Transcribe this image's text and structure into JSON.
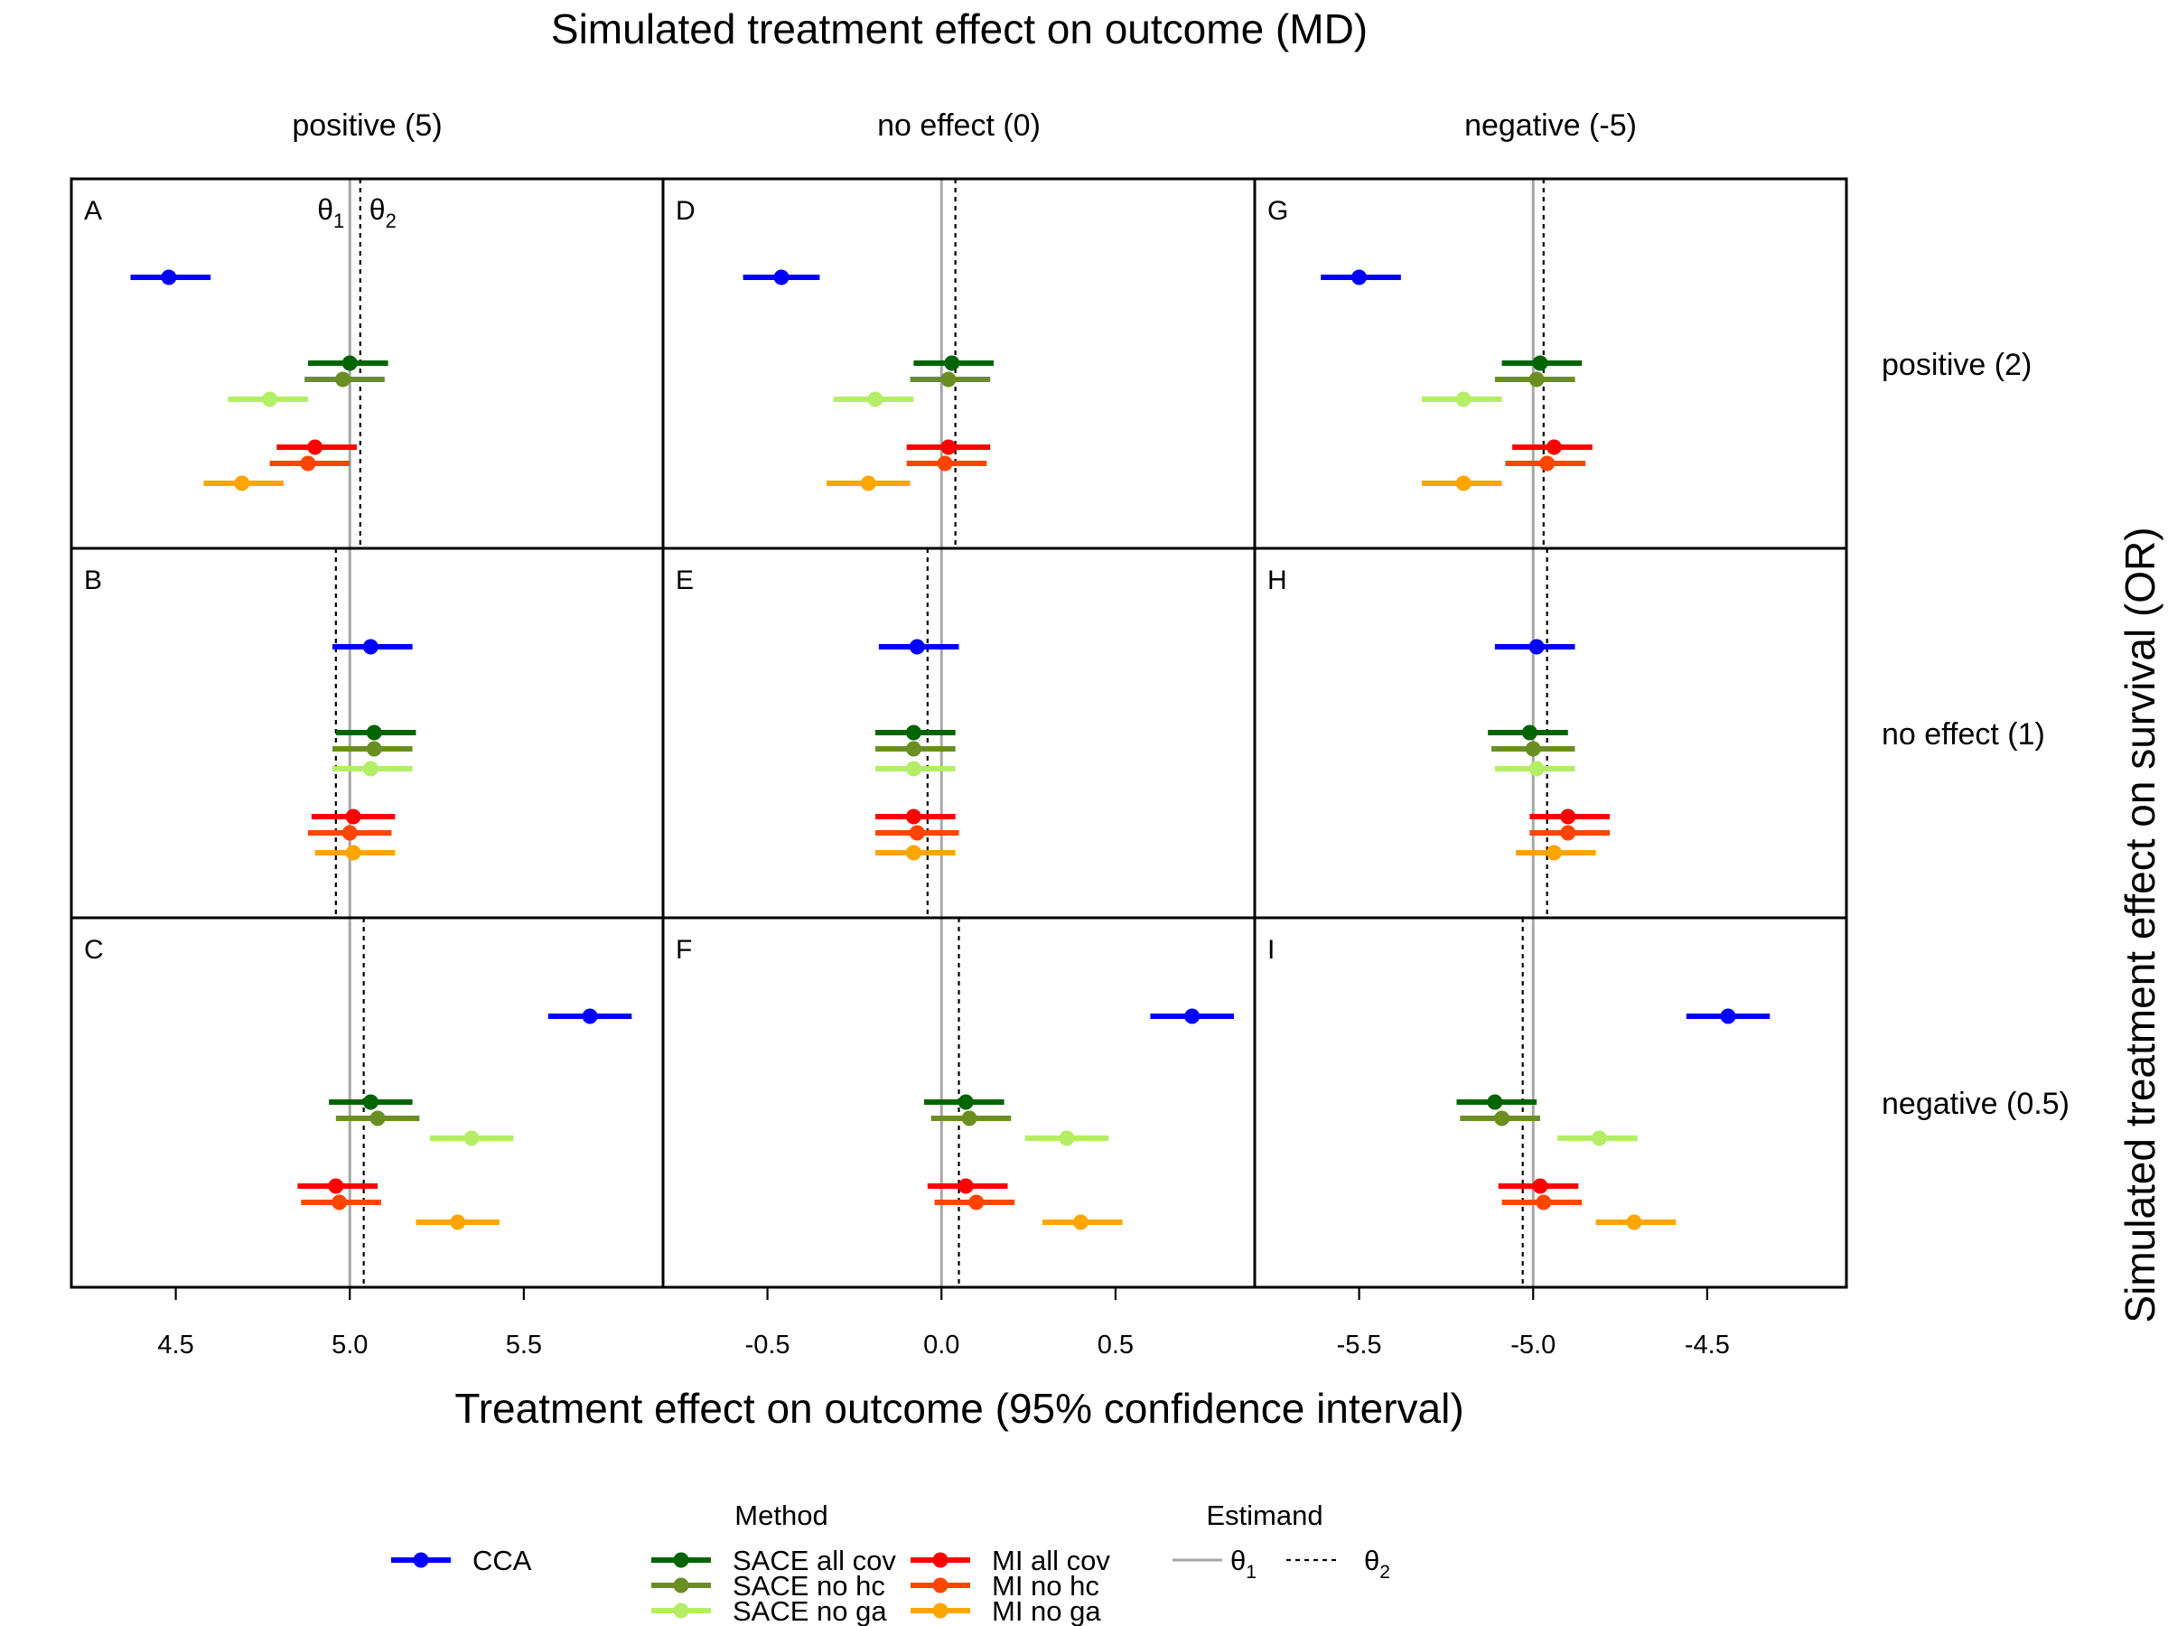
{
  "chart_data": {
    "type": "forest",
    "title": "Simulated treatment effect on outcome (MD)",
    "xlabel": "Treatment effect on outcome (95% confidence interval)",
    "ylabel": "Simulated treatment effect on survival (OR)",
    "columns": [
      {
        "label": "positive (5)",
        "xlim": [
          4.2,
          5.9
        ],
        "ticks": [
          "4.5",
          "5.0",
          "5.5"
        ],
        "tick_values": [
          4.5,
          5.0,
          5.5
        ]
      },
      {
        "label": "no effect (0)",
        "xlim": [
          -0.8,
          0.9
        ],
        "ticks": [
          "-0.5",
          "0.0",
          "0.5"
        ],
        "tick_values": [
          -0.5,
          0.0,
          0.5
        ]
      },
      {
        "label": "negative (-5)",
        "xlim": [
          -5.8,
          -4.1
        ],
        "ticks": [
          "-5.5",
          "-5.0",
          "-4.5"
        ],
        "tick_values": [
          -5.5,
          -5.0,
          -4.5
        ]
      }
    ],
    "rows": [
      {
        "label": "positive (2)"
      },
      {
        "label": "no effect (1)"
      },
      {
        "label": "negative (0.5)"
      }
    ],
    "methods": [
      {
        "name": "CCA",
        "color": "#0000ff"
      },
      {
        "name": "SACE all cov",
        "color": "#006400"
      },
      {
        "name": "SACE no hc",
        "color": "#6b8e23"
      },
      {
        "name": "SACE no ga",
        "color": "#b3ee66"
      },
      {
        "name": "MI all cov",
        "color": "#ff0000"
      },
      {
        "name": "MI no hc",
        "color": "#ff4500"
      },
      {
        "name": "MI no ga",
        "color": "#ffa500"
      }
    ],
    "panels": [
      {
        "label": "A",
        "col": 0,
        "row": 0,
        "theta1": 5.0,
        "theta2": 5.03,
        "estimates": [
          {
            "est": 4.48,
            "lo": 4.37,
            "hi": 4.6
          },
          {
            "est": 5.0,
            "lo": 4.88,
            "hi": 5.11
          },
          {
            "est": 4.98,
            "lo": 4.87,
            "hi": 5.1
          },
          {
            "est": 4.77,
            "lo": 4.65,
            "hi": 4.88
          },
          {
            "est": 4.9,
            "lo": 4.79,
            "hi": 5.02
          },
          {
            "est": 4.88,
            "lo": 4.77,
            "hi": 5.0
          },
          {
            "est": 4.69,
            "lo": 4.58,
            "hi": 4.81
          }
        ]
      },
      {
        "label": "B",
        "col": 0,
        "row": 1,
        "theta1": 5.0,
        "theta2": 4.96,
        "estimates": [
          {
            "est": 5.06,
            "lo": 4.95,
            "hi": 5.18
          },
          {
            "est": 5.07,
            "lo": 4.96,
            "hi": 5.19
          },
          {
            "est": 5.07,
            "lo": 4.95,
            "hi": 5.18
          },
          {
            "est": 5.06,
            "lo": 4.95,
            "hi": 5.18
          },
          {
            "est": 5.01,
            "lo": 4.89,
            "hi": 5.13
          },
          {
            "est": 5.0,
            "lo": 4.88,
            "hi": 5.12
          },
          {
            "est": 5.01,
            "lo": 4.9,
            "hi": 5.13
          }
        ]
      },
      {
        "label": "C",
        "col": 0,
        "row": 2,
        "theta1": 5.0,
        "theta2": 5.04,
        "estimates": [
          {
            "est": 5.69,
            "lo": 5.57,
            "hi": 5.81
          },
          {
            "est": 5.06,
            "lo": 4.94,
            "hi": 5.18
          },
          {
            "est": 5.08,
            "lo": 4.96,
            "hi": 5.2
          },
          {
            "est": 5.35,
            "lo": 5.23,
            "hi": 5.47
          },
          {
            "est": 4.96,
            "lo": 4.85,
            "hi": 5.08
          },
          {
            "est": 4.97,
            "lo": 4.86,
            "hi": 5.09
          },
          {
            "est": 5.31,
            "lo": 5.19,
            "hi": 5.43
          }
        ]
      },
      {
        "label": "D",
        "col": 1,
        "row": 0,
        "theta1": 0.0,
        "theta2": 0.04,
        "estimates": [
          {
            "est": -0.46,
            "lo": -0.57,
            "hi": -0.35
          },
          {
            "est": 0.03,
            "lo": -0.08,
            "hi": 0.15
          },
          {
            "est": 0.02,
            "lo": -0.09,
            "hi": 0.14
          },
          {
            "est": -0.19,
            "lo": -0.31,
            "hi": -0.08
          },
          {
            "est": 0.02,
            "lo": -0.1,
            "hi": 0.14
          },
          {
            "est": 0.01,
            "lo": -0.1,
            "hi": 0.13
          },
          {
            "est": -0.21,
            "lo": -0.33,
            "hi": -0.09
          }
        ]
      },
      {
        "label": "E",
        "col": 1,
        "row": 1,
        "theta1": 0.0,
        "theta2": -0.04,
        "estimates": [
          {
            "est": -0.07,
            "lo": -0.18,
            "hi": 0.05
          },
          {
            "est": -0.08,
            "lo": -0.19,
            "hi": 0.04
          },
          {
            "est": -0.08,
            "lo": -0.19,
            "hi": 0.04
          },
          {
            "est": -0.08,
            "lo": -0.19,
            "hi": 0.04
          },
          {
            "est": -0.08,
            "lo": -0.19,
            "hi": 0.04
          },
          {
            "est": -0.07,
            "lo": -0.19,
            "hi": 0.05
          },
          {
            "est": -0.08,
            "lo": -0.19,
            "hi": 0.04
          }
        ]
      },
      {
        "label": "F",
        "col": 1,
        "row": 2,
        "theta1": 0.0,
        "theta2": 0.05,
        "estimates": [
          {
            "est": 0.72,
            "lo": 0.6,
            "hi": 0.84
          },
          {
            "est": 0.07,
            "lo": -0.05,
            "hi": 0.18
          },
          {
            "est": 0.08,
            "lo": -0.03,
            "hi": 0.2
          },
          {
            "est": 0.36,
            "lo": 0.24,
            "hi": 0.48
          },
          {
            "est": 0.07,
            "lo": -0.04,
            "hi": 0.19
          },
          {
            "est": 0.1,
            "lo": -0.02,
            "hi": 0.21
          },
          {
            "est": 0.4,
            "lo": 0.29,
            "hi": 0.52
          }
        ]
      },
      {
        "label": "G",
        "col": 2,
        "row": 0,
        "theta1": -5.0,
        "theta2": -4.97,
        "estimates": [
          {
            "est": -5.5,
            "lo": -5.61,
            "hi": -5.38
          },
          {
            "est": -4.98,
            "lo": -5.09,
            "hi": -4.86
          },
          {
            "est": -4.99,
            "lo": -5.11,
            "hi": -4.88
          },
          {
            "est": -5.2,
            "lo": -5.32,
            "hi": -5.09
          },
          {
            "est": -4.94,
            "lo": -5.06,
            "hi": -4.83
          },
          {
            "est": -4.96,
            "lo": -5.08,
            "hi": -4.85
          },
          {
            "est": -5.2,
            "lo": -5.32,
            "hi": -5.09
          }
        ]
      },
      {
        "label": "H",
        "col": 2,
        "row": 1,
        "theta1": -5.0,
        "theta2": -4.96,
        "estimates": [
          {
            "est": -4.99,
            "lo": -5.11,
            "hi": -4.88
          },
          {
            "est": -5.01,
            "lo": -5.13,
            "hi": -4.9
          },
          {
            "est": -5.0,
            "lo": -5.12,
            "hi": -4.88
          },
          {
            "est": -4.99,
            "lo": -5.11,
            "hi": -4.88
          },
          {
            "est": -4.9,
            "lo": -5.01,
            "hi": -4.78
          },
          {
            "est": -4.9,
            "lo": -5.01,
            "hi": -4.78
          },
          {
            "est": -4.94,
            "lo": -5.05,
            "hi": -4.82
          }
        ]
      },
      {
        "label": "I",
        "col": 2,
        "row": 2,
        "theta1": -5.0,
        "theta2": -5.03,
        "estimates": [
          {
            "est": -4.44,
            "lo": -4.56,
            "hi": -4.32
          },
          {
            "est": -5.11,
            "lo": -5.22,
            "hi": -4.99
          },
          {
            "est": -5.09,
            "lo": -5.21,
            "hi": -4.98
          },
          {
            "est": -4.81,
            "lo": -4.93,
            "hi": -4.7
          },
          {
            "est": -4.98,
            "lo": -5.1,
            "hi": -4.87
          },
          {
            "est": -4.97,
            "lo": -5.09,
            "hi": -4.86
          },
          {
            "est": -4.71,
            "lo": -4.82,
            "hi": -4.59
          }
        ]
      }
    ],
    "legend": {
      "method_title": "Method",
      "estimand_title": "Estimand",
      "estimands": [
        {
          "symbol": "θ",
          "sub": "1",
          "style": "solid",
          "color": "#a6a6a6"
        },
        {
          "symbol": "θ",
          "sub": "2",
          "style": "dotted",
          "color": "#000000"
        }
      ],
      "placement": "bottom-center"
    },
    "annotations": [
      {
        "symbol": "θ",
        "sub": "1"
      },
      {
        "symbol": "θ",
        "sub": "2"
      }
    ]
  }
}
